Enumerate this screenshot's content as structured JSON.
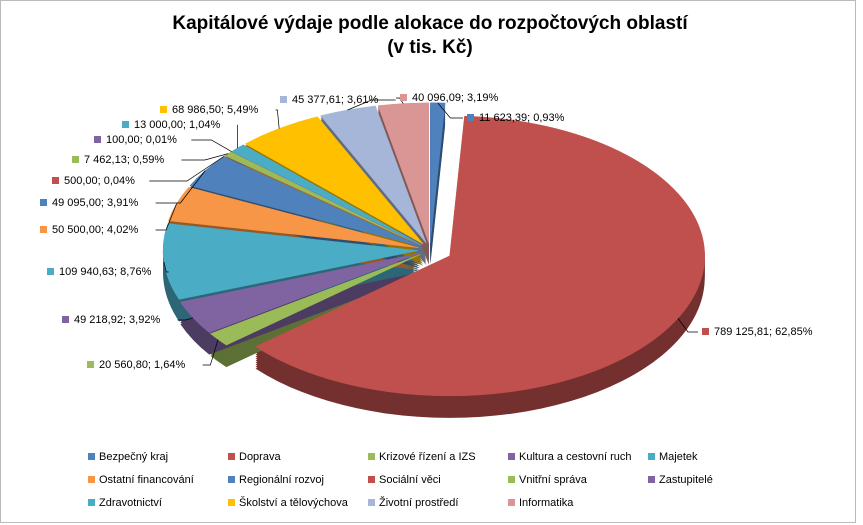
{
  "chart_data": {
    "type": "pie",
    "title": "Kapitálové výdaje podle alokace do rozpočtových oblastí",
    "subtitle": "(v tis. Kč)",
    "categories": [
      "Bezpečný kraj",
      "Doprava",
      "Krizové řízení a IZS",
      "Kultura a cestovní ruch",
      "Majetek",
      "Ostatní financování",
      "Regionální rozvoj",
      "Sociální věci",
      "Vnitřní správa",
      "Zastupitelé",
      "Zdravotnictví",
      "Školství a tělovýchova",
      "Životní prostředí",
      "Informatika"
    ],
    "values": [
      11623.39,
      789125.81,
      20560.8,
      49218.92,
      109940.63,
      50500.0,
      49095.0,
      500.0,
      7462.13,
      100.0,
      13000.0,
      68986.5,
      45377.61,
      40096.09
    ],
    "value_labels": [
      "11 623,39; 0,93%",
      "789 125,81; 62,85%",
      "20 560,80; 1,64%",
      "49 218,92; 3,92%",
      "109 940,63; 8,76%",
      "50 500,00; 4,02%",
      "49 095,00; 3,91%",
      "500,00; 0,04%",
      "7 462,13; 0,59%",
      "100,00; 0,01%",
      "13 000,00; 1,04%",
      "68 986,50; 5,49%",
      "45 377,61; 3,61%",
      "40 096,09; 3,19%"
    ],
    "colors": [
      "#4f81bd",
      "#c0504d",
      "#9bbb59",
      "#8064a2",
      "#4bacc6",
      "#f79646",
      "#4f81bd",
      "#c0504d",
      "#9bbb59",
      "#8064a2",
      "#4bacc6",
      "#ffc000",
      "#a5b6d9",
      "#d99694"
    ],
    "legend": "bottom"
  }
}
